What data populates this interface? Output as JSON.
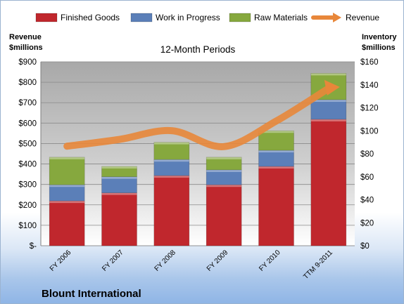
{
  "chart_data": {
    "type": "bar",
    "title": "12-Month Periods",
    "company": "Blount International",
    "ylabel_left": [
      "Revenue",
      "$millions"
    ],
    "ylabel_right": [
      "Inventory",
      "$millions"
    ],
    "categories": [
      "FY 2006",
      "FY 2007",
      "FY 2008",
      "FY 2009",
      "FY 2010",
      "TTM 9-2011"
    ],
    "left_axis": {
      "min": 0,
      "max": 900,
      "step": 100,
      "tick_labels": [
        "$-",
        "$100",
        "$200",
        "$300",
        "$400",
        "$500",
        "$600",
        "$700",
        "$800",
        "$900"
      ]
    },
    "right_axis": {
      "min": 0,
      "max": 160,
      "step": 20,
      "tick_labels": [
        "$0",
        "$20",
        "$40",
        "$60",
        "$80",
        "$100",
        "$120",
        "$140",
        "$160"
      ]
    },
    "series": [
      {
        "name": "Finished Goods",
        "axis": "right",
        "color": "#c0272d",
        "values": [
          39,
          46,
          61,
          53,
          69,
          110
        ]
      },
      {
        "name": "Work in Progress",
        "axis": "right",
        "color": "#5b7fb8",
        "values": [
          14,
          14,
          14,
          13,
          14,
          17
        ]
      },
      {
        "name": "Raw Materials",
        "axis": "right",
        "color": "#86a83e",
        "values": [
          24,
          9,
          15,
          11,
          17,
          23
        ]
      },
      {
        "name": "Revenue",
        "type": "line",
        "axis": "left",
        "color": "#e8873a",
        "values": [
          487,
          520,
          563,
          485,
          610,
          770
        ]
      }
    ],
    "grid": true,
    "legend_position": "top"
  }
}
